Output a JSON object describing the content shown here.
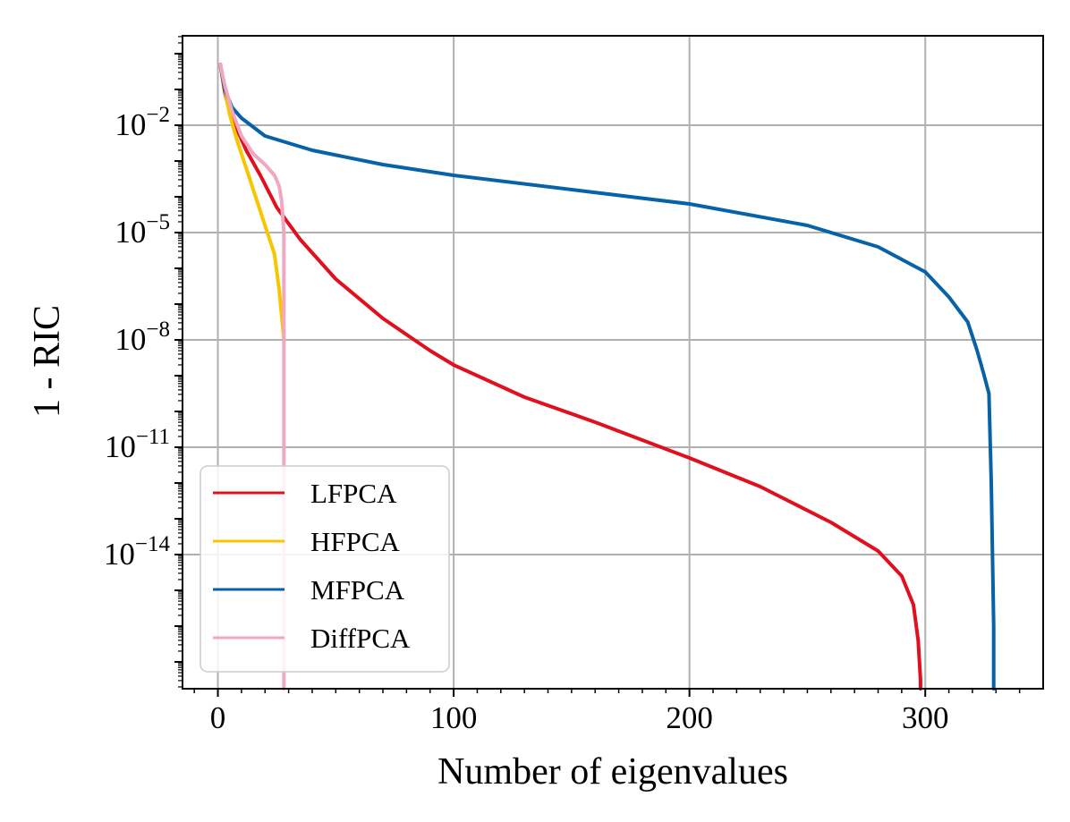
{
  "chart_data": {
    "type": "line",
    "title": "",
    "xlabel": "Number of eigenvalues",
    "ylabel": "1 - RIC",
    "xlim": [
      -15,
      350
    ],
    "yscale": "log",
    "ylim_log10": [
      -17.75,
      0.5
    ],
    "x_ticks": [
      0,
      100,
      200,
      300
    ],
    "x_tick_labels": [
      "0",
      "100",
      "200",
      "300"
    ],
    "y_ticks_log10": [
      -2,
      -5,
      -8,
      -11,
      -14
    ],
    "y_tick_labels": [
      {
        "base": "10",
        "exp": "−2"
      },
      {
        "base": "10",
        "exp": "−5"
      },
      {
        "base": "10",
        "exp": "−8"
      },
      {
        "base": "10",
        "exp": "−11"
      },
      {
        "base": "10",
        "exp": "−14"
      }
    ],
    "grid": true,
    "legend_position": "lower-left",
    "series": [
      {
        "name": "LFPCA",
        "color": "#e0101f",
        "x": [
          1,
          3,
          5,
          8,
          12,
          18,
          25,
          35,
          50,
          70,
          90,
          100,
          130,
          160,
          200,
          230,
          260,
          280,
          290,
          295,
          297,
          298,
          298
        ],
        "log10_y": [
          -0.3,
          -1.1,
          -1.6,
          -2.1,
          -2.7,
          -3.4,
          -4.3,
          -5.2,
          -6.3,
          -7.4,
          -8.3,
          -8.7,
          -9.6,
          -10.3,
          -11.3,
          -12.1,
          -13.1,
          -13.9,
          -14.6,
          -15.4,
          -16.4,
          -17.5,
          -17.75
        ],
        "linewidth": 4
      },
      {
        "name": "HFPCA",
        "color": "#f7c600",
        "x": [
          1,
          3,
          5,
          8,
          12,
          16,
          20,
          24,
          26,
          28
        ],
        "log10_y": [
          -0.3,
          -1.0,
          -1.7,
          -2.4,
          -3.2,
          -4.0,
          -4.8,
          -5.6,
          -6.6,
          -8.0
        ],
        "linewidth": 4
      },
      {
        "name": "MFPCA",
        "color": "#0762a8",
        "x": [
          1,
          3,
          6,
          10,
          20,
          40,
          70,
          100,
          150,
          200,
          250,
          280,
          300,
          310,
          318,
          322,
          325,
          327,
          328,
          329,
          329
        ],
        "log10_y": [
          -0.3,
          -1.0,
          -1.5,
          -1.8,
          -2.3,
          -2.7,
          -3.1,
          -3.4,
          -3.8,
          -4.2,
          -4.8,
          -5.4,
          -6.1,
          -6.8,
          -7.5,
          -8.3,
          -9.0,
          -9.5,
          -12.0,
          -16.0,
          -17.75
        ],
        "linewidth": 4
      },
      {
        "name": "DiffPCA",
        "color": "#f2a7c0",
        "x": [
          1,
          3,
          6,
          10,
          15,
          20,
          24,
          26,
          27,
          28,
          28
        ],
        "log10_y": [
          -0.3,
          -0.9,
          -1.6,
          -2.3,
          -2.8,
          -3.1,
          -3.4,
          -3.7,
          -4.1,
          -5.0,
          -17.75
        ],
        "linewidth": 4
      }
    ]
  }
}
